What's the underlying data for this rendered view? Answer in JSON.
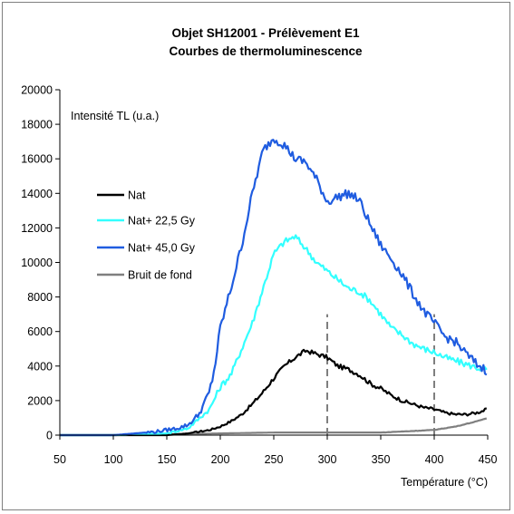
{
  "chart_data": {
    "type": "line",
    "title": "Objet SH12001  - Prélèvement  E1",
    "subtitle": "Courbes de thermoluminescence",
    "ylabel": "Intensité TL (u.a.)",
    "xlabel": "Température (°C)",
    "xlim": [
      50,
      450
    ],
    "ylim": [
      0,
      20000
    ],
    "xticks": [
      50,
      100,
      150,
      200,
      250,
      300,
      350,
      400,
      450
    ],
    "yticks": [
      0,
      2000,
      4000,
      6000,
      8000,
      10000,
      12000,
      14000,
      16000,
      18000,
      20000
    ],
    "grid": false,
    "legend_position": "left",
    "vertical_markers": [
      300,
      400
    ],
    "series": [
      {
        "name": "Nat",
        "color": "#000000",
        "x": [
          50,
          100,
          150,
          170,
          190,
          200,
          210,
          220,
          230,
          240,
          250,
          260,
          270,
          280,
          290,
          300,
          310,
          320,
          330,
          340,
          350,
          360,
          370,
          380,
          390,
          400,
          410,
          420,
          430,
          440,
          450
        ],
        "y": [
          0,
          0,
          0,
          100,
          300,
          500,
          800,
          1200,
          1800,
          2500,
          3300,
          4000,
          4500,
          4900,
          4700,
          4500,
          4000,
          3800,
          3500,
          3000,
          2700,
          2300,
          2000,
          1800,
          1600,
          1500,
          1300,
          1200,
          1200,
          1300,
          1500
        ]
      },
      {
        "name": "Nat+  22,5 Gy",
        "color": "#33ffff",
        "x": [
          50,
          100,
          150,
          170,
          190,
          200,
          210,
          220,
          230,
          240,
          250,
          260,
          270,
          280,
          290,
          300,
          310,
          320,
          330,
          340,
          350,
          360,
          370,
          380,
          390,
          400,
          410,
          420,
          430,
          440,
          450
        ],
        "y": [
          0,
          0,
          100,
          400,
          1500,
          2800,
          3500,
          5000,
          6500,
          8500,
          10500,
          11200,
          11500,
          10800,
          10000,
          9500,
          9000,
          8500,
          8300,
          7800,
          7000,
          6200,
          5800,
          5300,
          5000,
          4800,
          4500,
          4300,
          4100,
          3900,
          3800
        ]
      },
      {
        "name": "Nat+  45,0 Gy",
        "color": "#1f5ce0",
        "x": [
          50,
          100,
          140,
          160,
          170,
          180,
          190,
          195,
          200,
          210,
          220,
          230,
          240,
          250,
          260,
          270,
          280,
          290,
          300,
          310,
          320,
          330,
          340,
          350,
          360,
          370,
          380,
          390,
          400,
          410,
          420,
          430,
          440,
          450
        ],
        "y": [
          0,
          0,
          200,
          400,
          600,
          1200,
          2500,
          4000,
          6200,
          8500,
          11000,
          14000,
          16500,
          17200,
          16800,
          16000,
          15800,
          14800,
          13500,
          13800,
          14000,
          13600,
          12200,
          11000,
          10200,
          9300,
          8200,
          7200,
          6500,
          5700,
          5400,
          4700,
          4100,
          3700
        ]
      },
      {
        "name": "Bruit de fond",
        "color": "#7f7f7f",
        "x": [
          50,
          100,
          150,
          200,
          250,
          300,
          350,
          400,
          420,
          440,
          450
        ],
        "y": [
          0,
          0,
          50,
          100,
          150,
          150,
          150,
          300,
          500,
          800,
          1000
        ]
      }
    ]
  }
}
